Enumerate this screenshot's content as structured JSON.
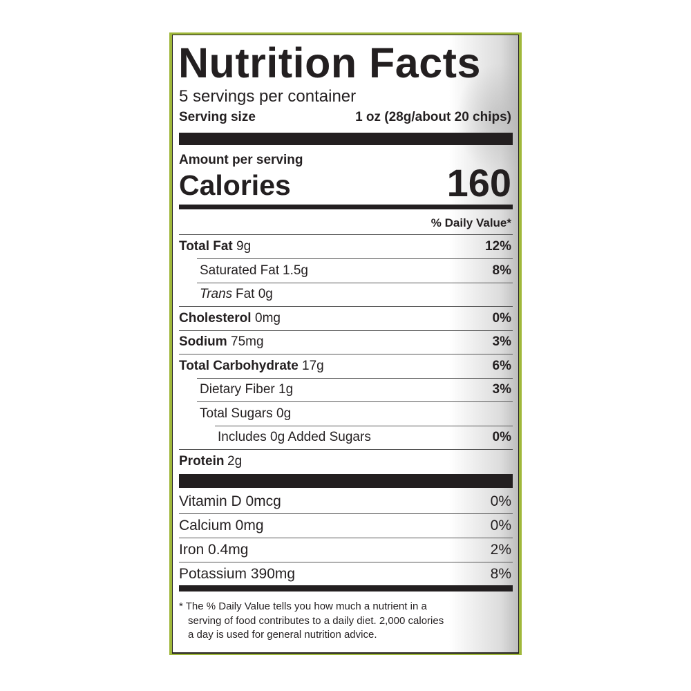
{
  "title": "Nutrition Facts",
  "servings_per_container": "5 servings per container",
  "serving_size_label": "Serving size",
  "serving_size_value": "1 oz (28g/about 20 chips)",
  "amount_per_serving": "Amount per serving",
  "calories_label": "Calories",
  "calories_value": "160",
  "daily_value_header": "% Daily Value*",
  "nutrients": [
    {
      "name": "Total Fat",
      "amount": "9g",
      "dv": "12%"
    },
    {
      "name": "Saturated Fat",
      "amount": "1.5g",
      "dv": "8%"
    },
    {
      "name": "Trans",
      "amount": "Fat 0g",
      "dv": ""
    },
    {
      "name": "Cholesterol",
      "amount": "0mg",
      "dv": "0%"
    },
    {
      "name": "Sodium",
      "amount": "75mg",
      "dv": "3%"
    },
    {
      "name": "Total Carbohydrate",
      "amount": "17g",
      "dv": "6%"
    },
    {
      "name": "Dietary Fiber",
      "amount": "1g",
      "dv": "3%"
    },
    {
      "name": "Total Sugars",
      "amount": "0g",
      "dv": ""
    },
    {
      "name": "Includes 0g Added Sugars",
      "amount": "",
      "dv": "0%"
    },
    {
      "name": "Protein",
      "amount": "2g",
      "dv": ""
    }
  ],
  "vitamins": [
    {
      "text": "Vitamin D 0mcg",
      "dv": "0%"
    },
    {
      "text": "Calcium 0mg",
      "dv": "0%"
    },
    {
      "text": "Iron 0.4mg",
      "dv": "2%"
    },
    {
      "text": "Potassium 390mg",
      "dv": "8%"
    }
  ],
  "footnote": {
    "line1": "* The % Daily Value tells you how much a nutrient in a",
    "line2": "serving of food contributes to a daily diet. 2,000 calories",
    "line3": "a day is used for general nutrition advice."
  },
  "colors": {
    "border": "#9fb83a",
    "ink": "#231f20"
  }
}
